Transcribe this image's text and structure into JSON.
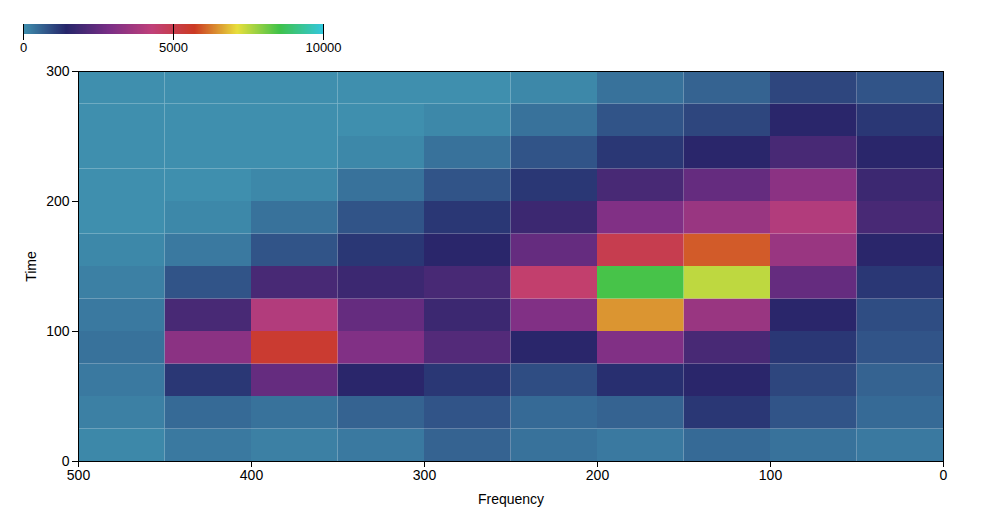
{
  "chart_data": {
    "type": "heatmap",
    "xlabel": "Frequency",
    "ylabel": "Time",
    "xlim": [
      500,
      0
    ],
    "xticks": [
      0,
      100,
      200,
      300,
      400,
      500
    ],
    "ylim": [
      0,
      300
    ],
    "yticks": [
      0,
      100,
      200,
      300
    ],
    "frequency_bins": [
      0,
      50,
      100,
      150,
      200,
      250,
      300,
      350,
      400,
      450,
      500
    ],
    "time_bins": [
      0,
      25,
      50,
      75,
      100,
      125,
      150,
      175,
      200,
      225,
      250,
      275,
      300
    ],
    "cells": [
      [
        300,
        400,
        500,
        300,
        400,
        600,
        300,
        200,
        300,
        100
      ],
      [
        500,
        800,
        1200,
        600,
        500,
        800,
        600,
        400,
        500,
        200
      ],
      [
        600,
        1000,
        1500,
        1300,
        900,
        1200,
        1500,
        2500,
        1200,
        300
      ],
      [
        800,
        1200,
        2000,
        3000,
        1500,
        2200,
        3000,
        5500,
        3200,
        400
      ],
      [
        900,
        1500,
        3500,
        6500,
        3000,
        1800,
        2500,
        4000,
        2000,
        300
      ],
      [
        1200,
        2500,
        7500,
        8500,
        4500,
        2000,
        1800,
        2000,
        800,
        200
      ],
      [
        1500,
        3500,
        6000,
        5000,
        2500,
        1500,
        1200,
        800,
        300,
        100
      ],
      [
        2000,
        4000,
        3500,
        3000,
        1800,
        1200,
        800,
        400,
        100,
        0
      ],
      [
        1800,
        3200,
        2500,
        2000,
        1200,
        800,
        400,
        100,
        0,
        0
      ],
      [
        1500,
        2000,
        1500,
        1200,
        800,
        400,
        100,
        0,
        0,
        0
      ],
      [
        1200,
        1500,
        1000,
        800,
        400,
        100,
        0,
        0,
        0,
        0
      ],
      [
        800,
        1000,
        600,
        400,
        100,
        0,
        0,
        0,
        0,
        0
      ]
    ],
    "colorbar_range": [
      0,
      10000
    ],
    "colorbar_ticks": [
      0,
      5000,
      10000
    ]
  }
}
